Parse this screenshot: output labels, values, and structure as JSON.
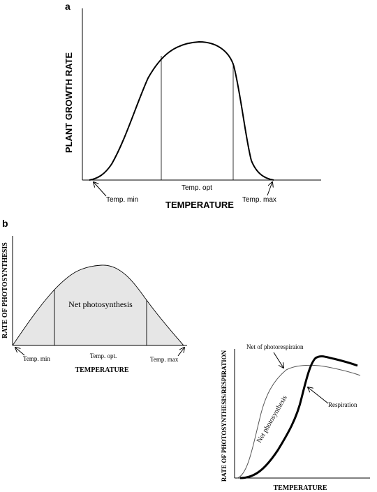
{
  "chart_data": [
    {
      "panel_label": "a",
      "type": "line",
      "ylabel": "PLANT GROWTH RATE",
      "xlabel": "TEMPERATURE",
      "series": [
        {
          "x": [
            0,
            0.05,
            0.1,
            0.2,
            0.3,
            0.4,
            0.5,
            0.6,
            0.7,
            0.75,
            0.8,
            0.85,
            0.9,
            0.95,
            1.0
          ],
          "y": [
            0,
            0.02,
            0.12,
            0.42,
            0.75,
            0.93,
            1.0,
            0.97,
            0.8,
            0.6,
            0.3,
            0.1,
            0.03,
            0.01,
            0
          ]
        }
      ],
      "marks": [
        {
          "x": 0.38,
          "label": ""
        },
        {
          "x": 0.73,
          "label": ""
        }
      ],
      "annotations": [
        {
          "text": "Temp. min",
          "x": 0.0
        },
        {
          "text": "Temp. opt",
          "x": 0.55
        },
        {
          "text": "Temp. max",
          "x": 1.0
        }
      ]
    },
    {
      "panel_label": "b",
      "type": "area",
      "ylabel": "RATE OF PHOTOSYNTHESIS",
      "xlabel": "TEMPERATURE",
      "area_label": "Net photosynthesis",
      "series": [
        {
          "x": [
            0,
            0.1,
            0.2,
            0.3,
            0.4,
            0.5,
            0.6,
            0.7,
            0.8,
            0.9,
            1.0
          ],
          "y": [
            0,
            0.3,
            0.56,
            0.76,
            0.92,
            1.0,
            0.97,
            0.83,
            0.6,
            0.3,
            0
          ]
        }
      ],
      "marks": [
        {
          "x": 0.24
        },
        {
          "x": 0.77
        }
      ],
      "annotations": [
        {
          "text": "Temp. min",
          "x": 0.0
        },
        {
          "text": "Temp. opt.",
          "x": 0.5
        },
        {
          "text": "Temp. max",
          "x": 1.0
        }
      ]
    },
    {
      "panel_label": "",
      "type": "line",
      "ylabel": "RATE OF PHOTOSYNTHESIS/RESPIRATION",
      "xlabel": "TEMPERATURE",
      "series": [
        {
          "name": "Net of photorespiraion",
          "x": [
            0,
            0.05,
            0.1,
            0.15,
            0.2,
            0.25,
            0.3,
            0.4,
            0.5,
            0.6,
            0.7,
            0.8,
            0.9,
            1.0
          ],
          "y": [
            0,
            0.05,
            0.22,
            0.48,
            0.7,
            0.83,
            0.9,
            0.94,
            0.94,
            0.92,
            0.9,
            0.88,
            0.85,
            0.83
          ]
        },
        {
          "name": "Net photosynthesis",
          "x": [
            0,
            0.1,
            0.2,
            0.3,
            0.4,
            0.45,
            0.5,
            0.55,
            0.6,
            0.65,
            0.7,
            0.8,
            0.9,
            0.95
          ],
          "y": [
            0,
            0.0,
            0.05,
            0.17,
            0.37,
            0.55,
            0.8,
            0.97,
            1.0,
            0.99,
            0.97,
            0.93,
            0.9,
            0.88
          ]
        }
      ],
      "annotations": [
        {
          "text": "Net of photorespiraion",
          "target": "thin curve"
        },
        {
          "text": "Net photosynthesis",
          "target": "along bold curve"
        },
        {
          "text": "Respiration",
          "target": "bold curve"
        }
      ]
    }
  ]
}
